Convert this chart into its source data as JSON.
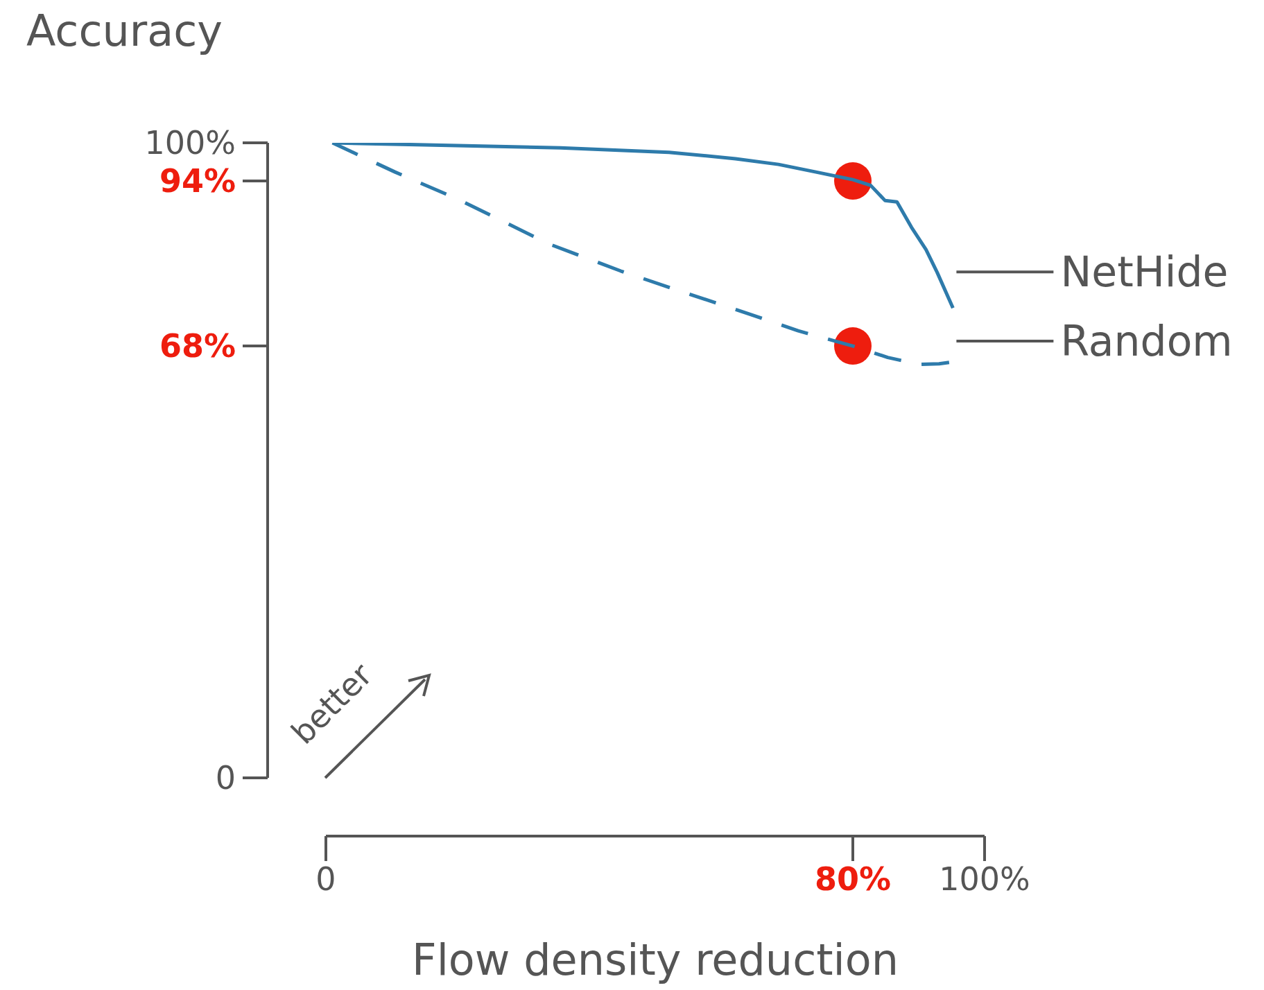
{
  "chart_data": {
    "type": "line",
    "ylabel": "Accuracy",
    "xlabel": "Flow density reduction",
    "xlim": [
      0,
      100
    ],
    "ylim": [
      0,
      100
    ],
    "xticks": [
      0,
      {
        "value": 80,
        "label": "80%"
      },
      {
        "value": 100,
        "label": "100%"
      }
    ],
    "yticks": [
      0,
      {
        "value": 68,
        "label": "68%"
      },
      {
        "value": 94,
        "label": "94%"
      },
      {
        "value": 100,
        "label": "100%"
      }
    ],
    "annotations": [
      "better"
    ],
    "series": [
      {
        "name": "NetHide",
        "color": "#2e7bab",
        "line_style": "solid",
        "marker": "none",
        "x": [
          1,
          35.6,
          52.1,
          62.2,
          68.7,
          74.4,
          80,
          82.7,
          84.9,
          86.7,
          88.9,
          91.1,
          92.8,
          95.2
        ],
        "values": [
          100,
          99.2,
          98.5,
          97.5,
          96.6,
          95.4,
          94.2,
          93.3,
          90.9,
          90.7,
          86.7,
          83.2,
          79.6,
          74
        ]
      },
      {
        "name": "Random",
        "color": "#2e7bab",
        "line_style": "dashed",
        "marker": "none",
        "x": [
          1,
          10.5,
          20.3,
          33.8,
          44.8,
          52.8,
          64.4,
          71.7,
          80,
          85.3,
          90.1,
          93.1,
          95.2
        ],
        "values": [
          100,
          95.4,
          91,
          84.1,
          79.8,
          77,
          73,
          70.4,
          68,
          66.2,
          65.1,
          65.2,
          65.5
        ]
      },
      {
        "type": "scatter",
        "color": "#ee1d0e",
        "marker": "circle",
        "x": [
          80,
          80
        ],
        "values": [
          94,
          68
        ]
      }
    ]
  }
}
